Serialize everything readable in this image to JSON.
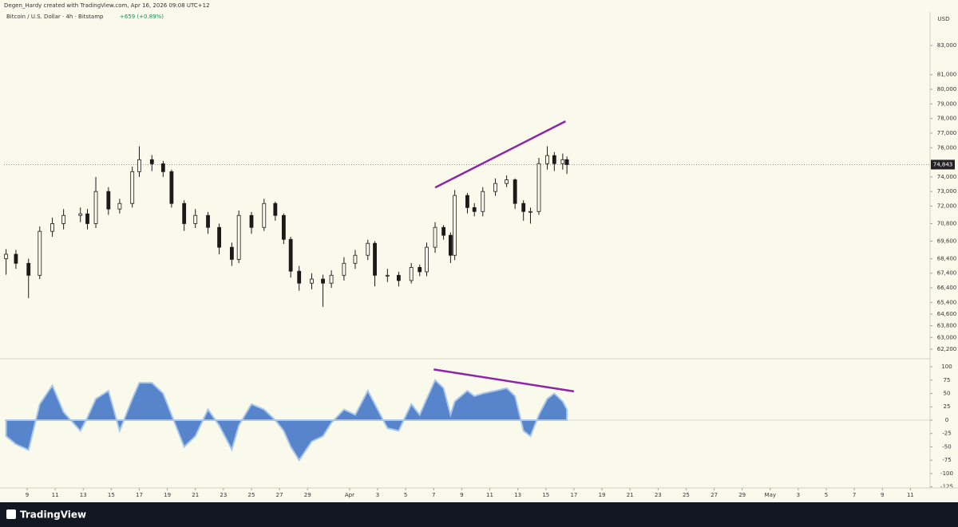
{
  "header": "Degen_Hardy created with TradingView.com, Apr 16, 2026 09:08 UTC+12",
  "brand": "TradingView",
  "chart_data": [
    {
      "type": "candlestick",
      "title": "Bitcoin / U.S. Dollar · 4h · Bitstamp",
      "subtitle": "+659 (+0.89%)",
      "currency": "USD",
      "last_label": "74,843",
      "x": [
        7.5,
        8.2,
        9.1,
        9.9,
        10.8,
        11.6,
        12.8,
        13.3,
        13.9,
        14.8,
        15.6,
        16.5,
        17.0,
        17.9,
        18.7,
        19.3,
        20.2,
        21.0,
        21.9,
        22.7,
        23.6,
        24.1,
        25.0,
        25.9,
        26.7,
        27.3,
        27.8,
        28.4,
        29.3,
        30.1,
        30.7,
        31.6,
        32.4,
        33.3,
        33.8,
        34.7,
        35.5,
        36.4,
        37.0,
        37.5,
        38.1,
        38.7,
        39.2,
        39.5,
        40.4,
        40.9,
        41.5,
        42.4,
        43.2,
        43.8,
        44.4,
        44.9,
        45.5,
        46.1,
        46.6,
        47.2,
        47.5
      ],
      "open": [
        68400,
        68700,
        68080,
        67260,
        70270,
        70800,
        71360,
        71470,
        70800,
        73000,
        71800,
        72180,
        74360,
        75180,
        74900,
        74360,
        72180,
        70800,
        71360,
        70540,
        69180,
        68350,
        71360,
        70540,
        72180,
        71360,
        69720,
        67540,
        66720,
        67000,
        66720,
        67260,
        68080,
        68630,
        69450,
        67260,
        67260,
        66900,
        67800,
        67500,
        69180,
        70540,
        70000,
        68630,
        72730,
        71900,
        71630,
        73000,
        73550,
        73800,
        72180,
        71630,
        71630,
        74910,
        75460,
        74910,
        75180
      ],
      "high": [
        69050,
        69000,
        68400,
        70600,
        71200,
        71800,
        71900,
        71800,
        74000,
        73300,
        72500,
        74700,
        76100,
        75500,
        75100,
        74500,
        72400,
        71800,
        71600,
        70800,
        69500,
        71700,
        71600,
        72500,
        72300,
        71500,
        69900,
        67900,
        67400,
        67300,
        67600,
        68500,
        69000,
        69700,
        69600,
        67700,
        67500,
        68100,
        68000,
        69500,
        70900,
        70700,
        70200,
        73100,
        72900,
        72200,
        73300,
        73900,
        74100,
        73900,
        72400,
        71900,
        75300,
        76100,
        75700,
        75600,
        75400
      ],
      "low": [
        67300,
        67700,
        65700,
        67000,
        69900,
        70400,
        70900,
        70400,
        70500,
        71400,
        71500,
        71900,
        74000,
        74400,
        74000,
        71900,
        70300,
        70500,
        70100,
        68700,
        67900,
        68100,
        70100,
        70300,
        71000,
        69400,
        67100,
        66200,
        66300,
        65100,
        66400,
        66900,
        67700,
        68300,
        66500,
        66800,
        66500,
        66700,
        67200,
        67200,
        68800,
        69700,
        68100,
        68300,
        71500,
        71300,
        71300,
        72700,
        73300,
        71800,
        71000,
        70800,
        71400,
        74500,
        74400,
        74500,
        74200
      ],
      "close": [
        68700,
        68080,
        67260,
        70270,
        70800,
        71360,
        71470,
        70800,
        73000,
        71800,
        72180,
        74360,
        75180,
        74900,
        74360,
        72180,
        70800,
        71360,
        70540,
        69180,
        68350,
        71360,
        70540,
        72180,
        71360,
        69720,
        67540,
        66720,
        67000,
        66720,
        67260,
        68080,
        68630,
        69450,
        67260,
        67260,
        66900,
        67800,
        67500,
        69180,
        70540,
        70000,
        68630,
        72730,
        71900,
        71630,
        73000,
        73550,
        73800,
        72180,
        71630,
        71630,
        74910,
        75460,
        74910,
        75180,
        74843
      ],
      "color": "#1a1a1a",
      "trendline": {
        "x": [
          38.1,
          47.4
        ],
        "y": [
          73270,
          77810
        ],
        "color": "#8e24aa"
      },
      "xlim": [
        7.35,
        73.4
      ],
      "ylim": [
        61650,
        85300
      ],
      "yticks": [
        {
          "value": 83000,
          "label": "83,000"
        },
        {
          "value": 81000,
          "label": "81,000"
        },
        {
          "value": 80000,
          "label": "80,000"
        },
        {
          "value": 79000,
          "label": "79,000"
        },
        {
          "value": 78000,
          "label": "78,000"
        },
        {
          "value": 77000,
          "label": "77,000"
        },
        {
          "value": 76000,
          "label": "76,000"
        },
        {
          "value": 74000,
          "label": "74,000"
        },
        {
          "value": 73000,
          "label": "73,000"
        },
        {
          "value": 72000,
          "label": "72,000"
        },
        {
          "value": 70800,
          "label": "70,800"
        },
        {
          "value": 69600,
          "label": "69,600"
        },
        {
          "value": 68400,
          "label": "68,400"
        },
        {
          "value": 67400,
          "label": "67,400"
        },
        {
          "value": 66400,
          "label": "66,400"
        },
        {
          "value": 65400,
          "label": "65,400"
        },
        {
          "value": 64600,
          "label": "64,600"
        },
        {
          "value": 63800,
          "label": "63,800"
        },
        {
          "value": 63000,
          "label": "63,000"
        },
        {
          "value": 62200,
          "label": "62,200"
        }
      ]
    },
    {
      "type": "area",
      "x": [
        7.5,
        8.2,
        9.1,
        9.9,
        10.8,
        11.6,
        12.8,
        13.3,
        13.9,
        14.8,
        15.6,
        16.5,
        17.0,
        17.9,
        18.7,
        19.3,
        20.2,
        21.0,
        21.9,
        22.7,
        23.6,
        24.1,
        25.0,
        25.9,
        26.7,
        27.3,
        27.8,
        28.4,
        29.3,
        30.1,
        30.7,
        31.6,
        32.4,
        33.3,
        33.8,
        34.7,
        35.5,
        36.4,
        37.0,
        37.5,
        38.1,
        38.7,
        39.2,
        39.5,
        40.4,
        40.9,
        41.5,
        42.4,
        43.2,
        43.8,
        44.4,
        44.9,
        45.5,
        46.1,
        46.6,
        47.2,
        47.5
      ],
      "values": [
        -30,
        -45,
        -56,
        30,
        65,
        15,
        -20,
        5,
        40,
        55,
        -20,
        40,
        70,
        70,
        50,
        10,
        -50,
        -30,
        20,
        -10,
        -55,
        -10,
        30,
        20,
        0,
        -20,
        -50,
        -75,
        -40,
        -30,
        -5,
        20,
        10,
        55,
        30,
        -15,
        -20,
        30,
        10,
        40,
        75,
        60,
        10,
        35,
        55,
        45,
        50,
        55,
        60,
        45,
        -20,
        -30,
        10,
        40,
        50,
        35,
        20
      ],
      "color": "#3a6fc4",
      "trendline": {
        "x": [
          38.0,
          48.0
        ],
        "y": [
          95,
          54
        ],
        "color": "#8e24aa"
      },
      "xlim": [
        7.35,
        73.4
      ],
      "ylim": [
        -127,
        112
      ],
      "yticks": [
        100,
        75,
        50,
        25,
        0,
        -25,
        -50,
        -75,
        -100,
        -125
      ],
      "xticks": [
        {
          "value": 9,
          "label": "9"
        },
        {
          "value": 11,
          "label": "11"
        },
        {
          "value": 13,
          "label": "13"
        },
        {
          "value": 15,
          "label": "15"
        },
        {
          "value": 17,
          "label": "17"
        },
        {
          "value": 19,
          "label": "19"
        },
        {
          "value": 21,
          "label": "21"
        },
        {
          "value": 23,
          "label": "23"
        },
        {
          "value": 25,
          "label": "25"
        },
        {
          "value": 27,
          "label": "27"
        },
        {
          "value": 29,
          "label": "29"
        },
        {
          "value": 32,
          "label": "Apr"
        },
        {
          "value": 34,
          "label": "3"
        },
        {
          "value": 36,
          "label": "5"
        },
        {
          "value": 38,
          "label": "7"
        },
        {
          "value": 40,
          "label": "9"
        },
        {
          "value": 42,
          "label": "11"
        },
        {
          "value": 44,
          "label": "13"
        },
        {
          "value": 46,
          "label": "15"
        },
        {
          "value": 48,
          "label": "17"
        },
        {
          "value": 50,
          "label": "19"
        },
        {
          "value": 52,
          "label": "21"
        },
        {
          "value": 54,
          "label": "23"
        },
        {
          "value": 56,
          "label": "25"
        },
        {
          "value": 58,
          "label": "27"
        },
        {
          "value": 60,
          "label": "29"
        },
        {
          "value": 62,
          "label": "May"
        },
        {
          "value": 64,
          "label": "3"
        },
        {
          "value": 66,
          "label": "5"
        },
        {
          "value": 68,
          "label": "7"
        },
        {
          "value": 70,
          "label": "9"
        },
        {
          "value": 72,
          "label": "11"
        }
      ]
    }
  ]
}
